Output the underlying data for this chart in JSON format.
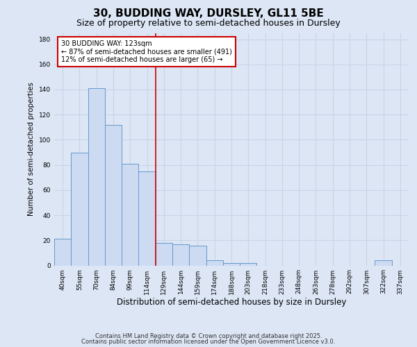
{
  "title": "30, BUDDING WAY, DURSLEY, GL11 5BE",
  "subtitle": "Size of property relative to semi-detached houses in Dursley",
  "xlabel": "Distribution of semi-detached houses by size in Dursley",
  "ylabel": "Number of semi-detached properties",
  "categories": [
    "40sqm",
    "55sqm",
    "70sqm",
    "84sqm",
    "99sqm",
    "114sqm",
    "129sqm",
    "144sqm",
    "159sqm",
    "174sqm",
    "188sqm",
    "203sqm",
    "218sqm",
    "233sqm",
    "248sqm",
    "263sqm",
    "278sqm",
    "292sqm",
    "307sqm",
    "322sqm",
    "337sqm"
  ],
  "values": [
    21,
    90,
    141,
    112,
    81,
    75,
    18,
    17,
    16,
    4,
    2,
    2,
    0,
    0,
    0,
    0,
    0,
    0,
    0,
    4,
    0
  ],
  "bar_color": "#ccdaf2",
  "bar_edge_color": "#6699cc",
  "grid_color": "#c8d4e8",
  "background_color": "#dce6f5",
  "annotation_box_color": "#ffffff",
  "annotation_box_edge": "#cc0000",
  "vline_color": "#cc0000",
  "vline_x_idx": 5.5,
  "annotation_title": "30 BUDDING WAY: 123sqm",
  "annotation_line1": "← 87% of semi-detached houses are smaller (491)",
  "annotation_line2": "12% of semi-detached houses are larger (65) →",
  "ylim": [
    0,
    185
  ],
  "yticks": [
    0,
    20,
    40,
    60,
    80,
    100,
    120,
    140,
    160,
    180
  ],
  "footer1": "Contains HM Land Registry data © Crown copyright and database right 2025.",
  "footer2": "Contains public sector information licensed under the Open Government Licence v3.0.",
  "title_fontsize": 11,
  "subtitle_fontsize": 9,
  "xlabel_fontsize": 8.5,
  "ylabel_fontsize": 7.5,
  "tick_fontsize": 6.5,
  "annotation_fontsize": 7,
  "footer_fontsize": 6
}
